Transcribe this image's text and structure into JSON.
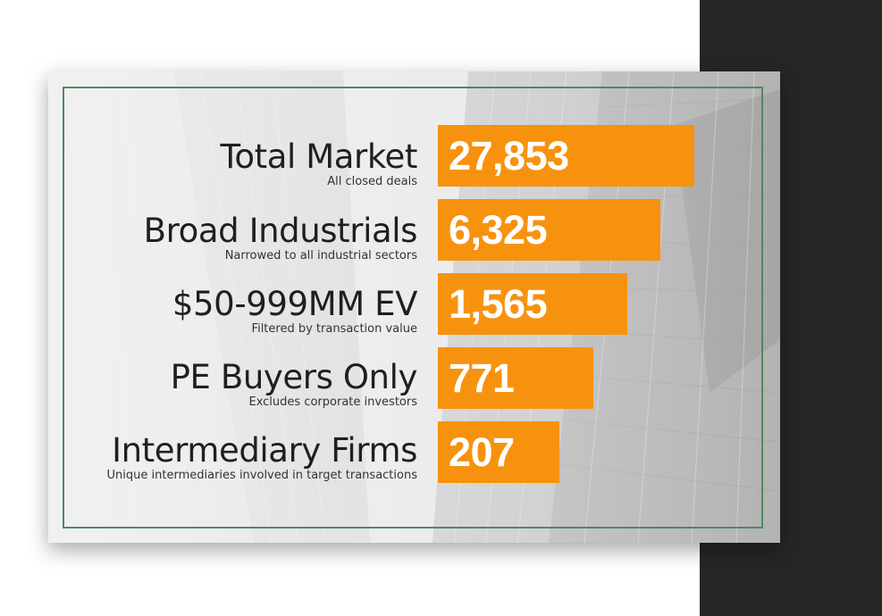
{
  "colors": {
    "bar": "#f7920f",
    "frame": "#4f8a5f",
    "dark_panel": "#262626"
  },
  "chart_data": {
    "type": "bar",
    "orientation": "horizontal",
    "categories": [
      "Total Market",
      "Broad Industrials",
      "$50-999MM EV",
      "PE Buyers Only",
      "Intermediary Firms"
    ],
    "subtitles": [
      "All closed deals",
      "Narrowed to all industrial sectors",
      "Filtered by transaction value",
      "Excludes corporate investors",
      "Unique intermediaries involved in target transactions"
    ],
    "values": [
      27853,
      6325,
      1565,
      771,
      207
    ],
    "value_labels": [
      "27,853",
      "6,325",
      "1,565",
      "771",
      "207"
    ],
    "style": "funnel",
    "grid": false
  }
}
